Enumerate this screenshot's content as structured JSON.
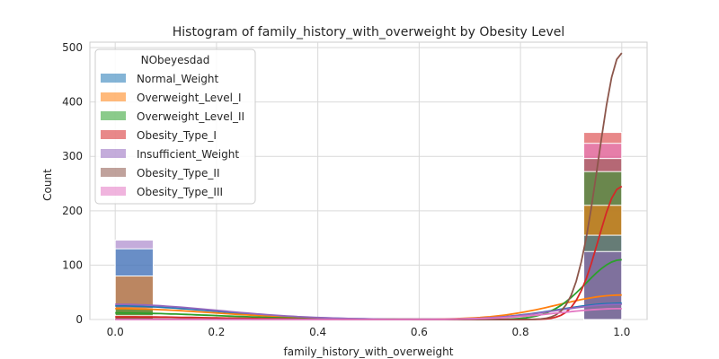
{
  "chart_data": {
    "type": "histogram",
    "title": "Histogram of family_history_with_overweight by Obesity Level",
    "xlabel": "family_history_with_overweight",
    "ylabel": "Count",
    "xlim": [
      -0.05,
      1.05
    ],
    "ylim": [
      0,
      510
    ],
    "x_ticks": [
      "0.0",
      "0.2",
      "0.4",
      "0.6",
      "0.8",
      "1.0"
    ],
    "x_tick_values": [
      0,
      0.2,
      0.4,
      0.6,
      0.8,
      1.0
    ],
    "y_ticks": [
      "0",
      "100",
      "200",
      "300",
      "400",
      "500"
    ],
    "y_tick_values": [
      0,
      100,
      200,
      300,
      400,
      500
    ],
    "grid": true,
    "legend_position": "upper-left",
    "legend_title": "NObeyesdad",
    "bins": [
      0.0,
      1.0
    ],
    "bin_width": 0.1,
    "series": [
      {
        "name": "Normal_Weight",
        "color": "#1f77b4",
        "values": [
          130,
          155
        ],
        "kde_end": 30,
        "kde_start": 25
      },
      {
        "name": "Overweight_Level_I",
        "color": "#ff7f0e",
        "values": [
          80,
          210
        ],
        "kde_end": 45,
        "kde_start": 20
      },
      {
        "name": "Overweight_Level_II",
        "color": "#2ca02c",
        "values": [
          20,
          272
        ],
        "kde_end": 110,
        "kde_start": 12
      },
      {
        "name": "Obesity_Type_I",
        "color": "#d62728",
        "values": [
          7,
          344
        ],
        "kde_end": 245,
        "kde_start": 5
      },
      {
        "name": "Insufficient_Weight",
        "color": "#9467bd",
        "values": [
          146,
          125
        ],
        "kde_end": 28,
        "kde_start": 28
      },
      {
        "name": "Obesity_Type_II",
        "color": "#8c564b",
        "values": [
          1,
          296
        ],
        "kde_end": 490,
        "kde_start": 1
      },
      {
        "name": "Obesity_Type_III",
        "color": "#e377c2",
        "values": [
          0,
          324
        ],
        "kde_end": 20,
        "kde_start": 0
      }
    ]
  }
}
